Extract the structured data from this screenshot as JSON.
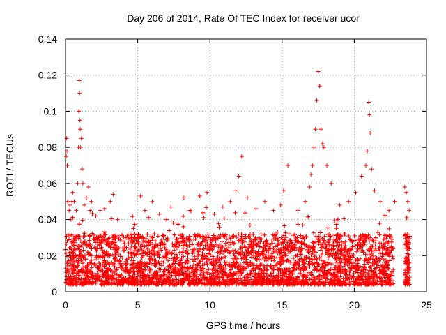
{
  "chart_data": {
    "type": "scatter",
    "title": "Day 206 of 2014, Rate Of TEC Index for receiver ucor",
    "xlabel": "GPS time / hours",
    "ylabel": "ROTI / TECUs",
    "xlim": [
      0,
      25
    ],
    "ylim": [
      0,
      0.14
    ],
    "xticks": [
      0,
      5,
      10,
      15,
      20,
      25
    ],
    "xtick_labels": [
      "0",
      "5",
      "10",
      "15",
      "20",
      "25"
    ],
    "yticks": [
      0,
      0.02,
      0.04,
      0.06,
      0.08,
      0.1,
      0.12,
      0.14
    ],
    "ytick_labels": [
      "0",
      "0.02",
      "0.04",
      "0.06",
      "0.08",
      "0.1",
      "0.12",
      "0.14"
    ],
    "grid": true,
    "marker": "plus",
    "color": "#ff0000",
    "series": [
      {
        "name": "ROTI",
        "x": [
          0.05,
          0.08,
          0.1,
          0.12,
          0.15,
          0.25,
          0.3,
          0.35,
          0.45,
          0.5,
          0.6,
          0.75,
          0.85,
          0.9,
          0.92,
          0.95,
          0.97,
          1.0,
          1.02,
          1.05,
          1.1,
          1.15,
          1.2,
          1.3,
          1.45,
          1.6,
          1.7,
          1.8,
          2.1,
          2.4,
          2.7,
          3.1,
          3.3,
          3.6,
          4.2,
          4.7,
          5.2,
          5.5,
          6.0,
          6.5,
          7.0,
          7.3,
          8.2,
          8.6,
          9.3,
          9.8,
          10.3,
          10.9,
          11.4,
          11.8,
          12.0,
          12.2,
          12.6,
          13.2,
          13.8,
          14.4,
          14.9,
          15.1,
          15.4,
          16.1,
          16.6,
          16.9,
          17.0,
          17.1,
          17.2,
          17.3,
          17.4,
          17.5,
          17.6,
          17.7,
          17.8,
          17.9,
          18.1,
          18.4,
          19.0,
          19.6,
          20.1,
          20.5,
          20.8,
          20.9,
          21.0,
          21.05,
          21.1,
          21.2,
          21.4,
          21.8,
          22.4,
          22.8,
          23.5,
          23.6,
          23.7,
          23.8
        ],
        "y": [
          0.075,
          0.085,
          0.078,
          0.07,
          0.05,
          0.045,
          0.048,
          0.04,
          0.05,
          0.055,
          0.05,
          0.045,
          0.06,
          0.08,
          0.1,
          0.117,
          0.11,
          0.095,
          0.09,
          0.08,
          0.085,
          0.068,
          0.06,
          0.048,
          0.052,
          0.058,
          0.045,
          0.05,
          0.042,
          0.045,
          0.046,
          0.05,
          0.054,
          0.04,
          0.03,
          0.035,
          0.053,
          0.045,
          0.05,
          0.043,
          0.04,
          0.047,
          0.052,
          0.045,
          0.053,
          0.055,
          0.043,
          0.047,
          0.05,
          0.056,
          0.064,
          0.075,
          0.052,
          0.046,
          0.05,
          0.045,
          0.048,
          0.056,
          0.07,
          0.045,
          0.05,
          0.058,
          0.065,
          0.07,
          0.08,
          0.09,
          0.106,
          0.122,
          0.114,
          0.09,
          0.082,
          0.08,
          0.07,
          0.06,
          0.048,
          0.05,
          0.055,
          0.064,
          0.07,
          0.078,
          0.105,
          0.098,
          0.088,
          0.068,
          0.056,
          0.05,
          0.045,
          0.05,
          0.058,
          0.055,
          0.05,
          0.045
        ]
      }
    ]
  }
}
